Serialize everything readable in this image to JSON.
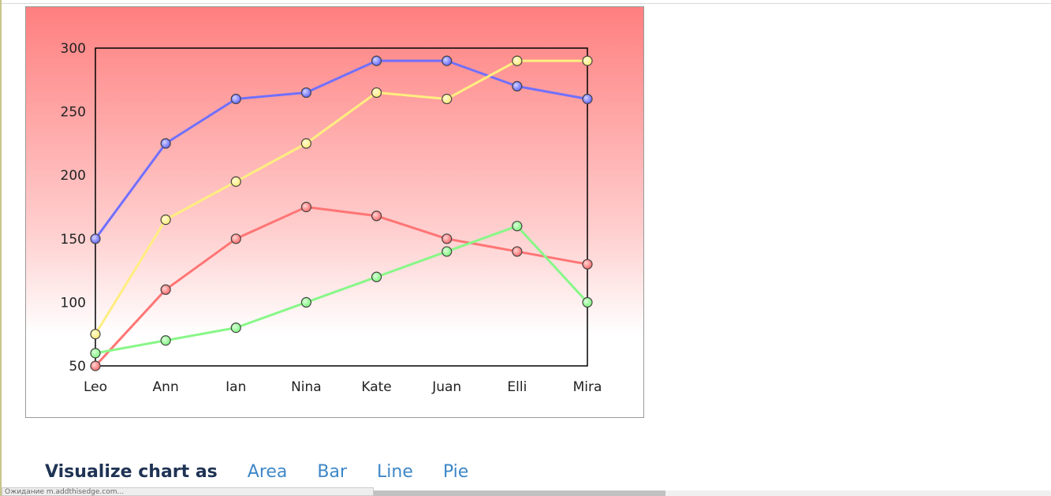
{
  "chart_data": {
    "type": "line",
    "categories": [
      "Leo",
      "Ann",
      "Ian",
      "Nina",
      "Kate",
      "Juan",
      "Elli",
      "Mira"
    ],
    "ylim": [
      50,
      300
    ],
    "yticks": [
      50,
      100,
      150,
      200,
      250,
      300
    ],
    "ytick_labels": [
      "50",
      "100",
      "150",
      "200",
      "250",
      "300"
    ],
    "grid": false,
    "background": "red-to-white vertical gradient",
    "series": [
      {
        "color": "#7070ff",
        "values": [
          150,
          225,
          260,
          265,
          290,
          290,
          270,
          260
        ]
      },
      {
        "color": "#ffee80",
        "values": [
          75,
          165,
          195,
          225,
          265,
          260,
          290,
          290
        ]
      },
      {
        "color": "#ff7575",
        "values": [
          50,
          110,
          150,
          175,
          168,
          150,
          140,
          130
        ]
      },
      {
        "color": "#88f788",
        "values": [
          60,
          70,
          80,
          100,
          120,
          140,
          160,
          100
        ]
      }
    ]
  },
  "controls": {
    "label": "Visualize chart as",
    "options": [
      "Area",
      "Bar",
      "Line",
      "Pie"
    ]
  },
  "status_text": "Ожидание m.addthisedge.com..."
}
